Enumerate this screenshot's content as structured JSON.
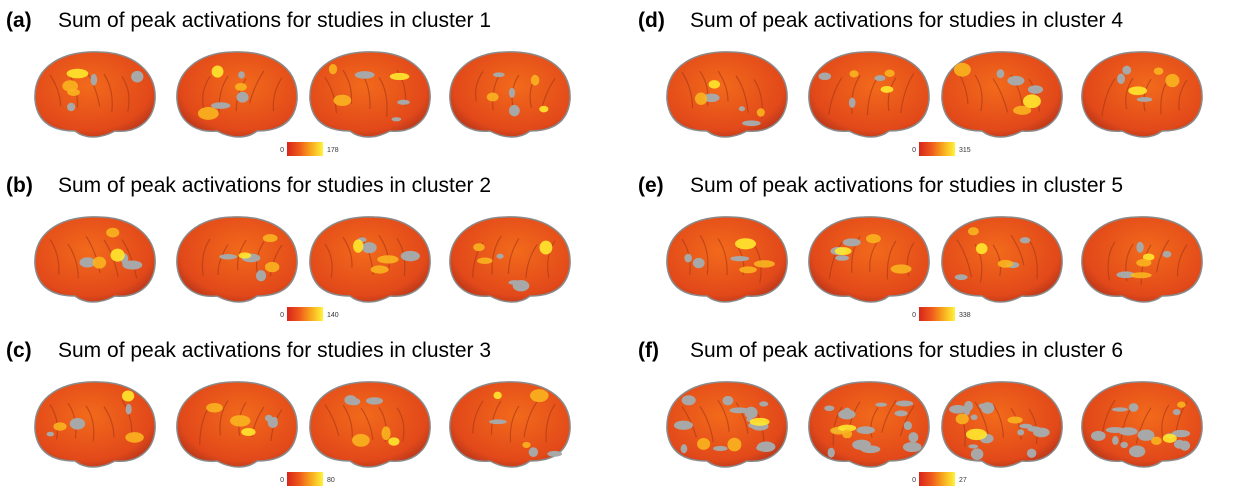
{
  "panels": [
    {
      "label": "(a)",
      "title": "Sum of peak activations for studies in cluster 1",
      "colorbar": {
        "min": 0,
        "max": 178
      }
    },
    {
      "label": "(b)",
      "title": "Sum of peak activations for studies in cluster 2",
      "colorbar": {
        "min": 0,
        "max": 140
      }
    },
    {
      "label": "(c)",
      "title": "Sum of peak activations for studies in cluster 3",
      "colorbar": {
        "min": 0,
        "max": 80
      }
    },
    {
      "label": "(d)",
      "title": "Sum of peak activations for studies in cluster 4",
      "colorbar": {
        "min": 0,
        "max": 315
      }
    },
    {
      "label": "(e)",
      "title": "Sum of peak activations for studies in cluster 5",
      "colorbar": {
        "min": 0,
        "max": 338
      }
    },
    {
      "label": "(f)",
      "title": "Sum of peak activations for studies in cluster 6",
      "colorbar": {
        "min": 0,
        "max": 27
      }
    }
  ]
}
